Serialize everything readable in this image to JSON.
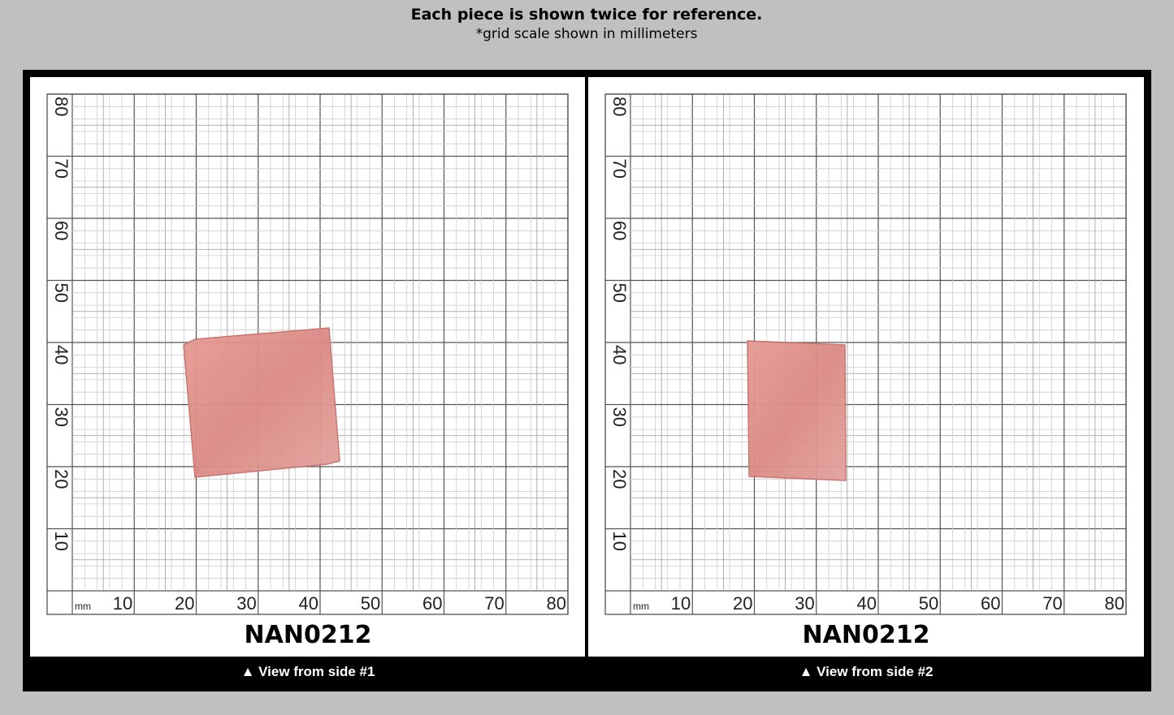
{
  "header": {
    "title": "Each piece is shown twice for reference.",
    "subtitle": "*grid scale shown in millimeters"
  },
  "panels": [
    {
      "label": "NAN0212",
      "caption": "▲ View from side #1",
      "unit": "mm",
      "x_labels": [
        10,
        20,
        30,
        40,
        50,
        60,
        70,
        80
      ],
      "y_labels": [
        10,
        20,
        30,
        40,
        50,
        60,
        70,
        80
      ]
    },
    {
      "label": "NAN0212",
      "caption": "▲ View from side #2",
      "unit": "mm",
      "x_labels": [
        10,
        20,
        30,
        40,
        50,
        60,
        70,
        80
      ],
      "y_labels": [
        10,
        20,
        30,
        40,
        50,
        60,
        70,
        80
      ]
    }
  ]
}
